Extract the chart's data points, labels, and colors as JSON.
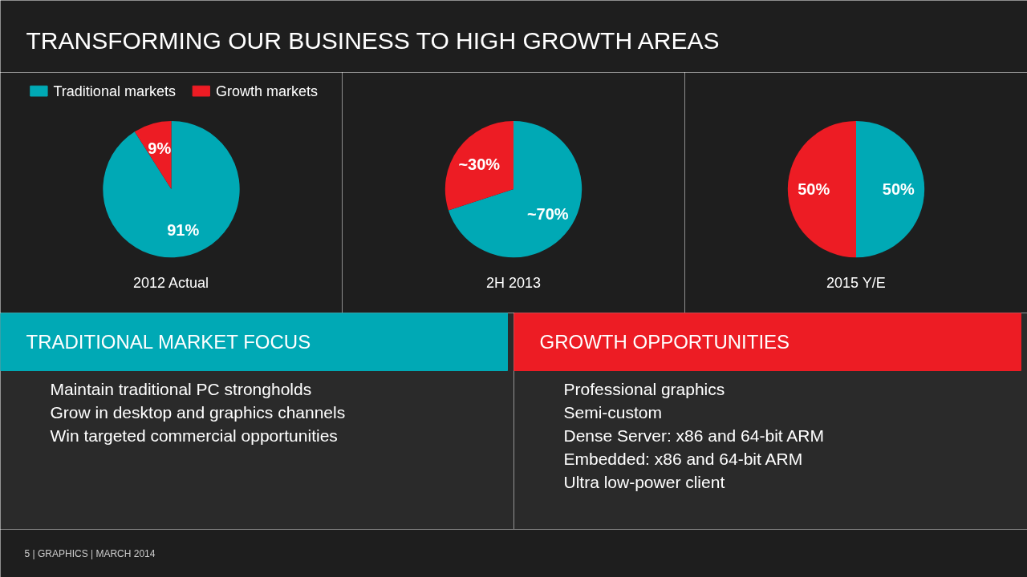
{
  "chart_data": [
    {
      "type": "other",
      "title": "TRANSFORMING OUR BUSINESS TO HIGH GROWTH AREAS"
    },
    {
      "type": "pie",
      "xlabel": "2012 Actual",
      "categories": [
        "Traditional markets",
        "Growth markets"
      ],
      "values": [
        91,
        9
      ],
      "colors": [
        "#00a9b5",
        "#ed1c24"
      ],
      "value_labels": [
        "91%",
        "9%"
      ],
      "legend": "top"
    },
    {
      "type": "pie",
      "xlabel": "2H 2013",
      "categories": [
        null,
        null
      ],
      "values": [
        70,
        30
      ],
      "colors": [
        "#00a9b5",
        "#ed1c24"
      ],
      "value_labels": [
        "~70%",
        "~30%"
      ]
    },
    {
      "type": "pie",
      "xlabel": "2015 Y/E",
      "categories": [
        null,
        null
      ],
      "values": [
        50,
        50
      ],
      "colors": [
        "#00a9b5",
        "#ed1c24"
      ],
      "value_labels": [
        "50%",
        "50%"
      ]
    },
    {
      "type": "other",
      "title": "TRADITIONAL MARKET FOCUS",
      "color": "#00a9b5",
      "annotations": [
        "Maintain traditional PC strongholds",
        "Grow in desktop and graphics channels",
        "Win targeted commercial opportunities"
      ]
    },
    {
      "type": "other",
      "title": "GROWTH OPPORTUNITIES",
      "color": "#ed1c24",
      "annotations": [
        "Professional graphics",
        "Semi-custom",
        "Dense Server: x86 and 64-bit ARM",
        "Embedded: x86 and 64-bit ARM",
        "Ultra low-power client"
      ]
    },
    {
      "type": "other",
      "annotations": [
        "5  |  GRAPHICS  |  MARCH 2014"
      ]
    }
  ]
}
